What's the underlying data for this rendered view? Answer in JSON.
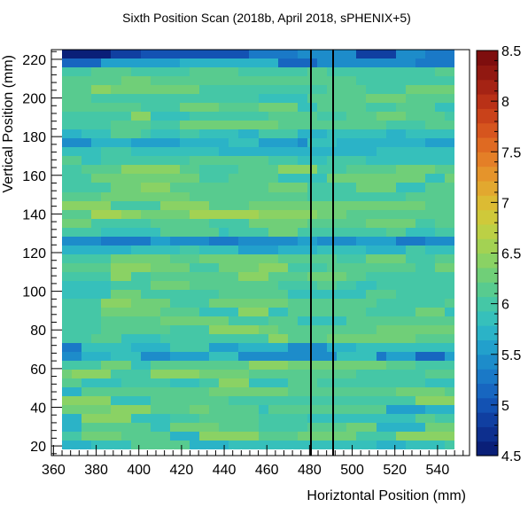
{
  "chart_data": {
    "type": "heatmap",
    "title": "Sixth Position Scan (2018b, April 2018, sPHENIX+5)",
    "xlabel": "Horiztontal Position (mm)",
    "ylabel": "Vertical Position (mm)",
    "xlim": [
      359,
      555
    ],
    "ylim": [
      15,
      225
    ],
    "x_ticks": [
      360,
      380,
      400,
      420,
      440,
      460,
      480,
      500,
      520,
      540
    ],
    "y_ticks": [
      20,
      40,
      60,
      80,
      100,
      120,
      140,
      160,
      180,
      200,
      220
    ],
    "colorbar": {
      "min": 4.5,
      "max": 8.5,
      "ticks": [
        4.5,
        5,
        5.5,
        6,
        6.5,
        7,
        7.5,
        8,
        8.5
      ],
      "palette": [
        "#0a1f78",
        "#0d2f8e",
        "#103fa1",
        "#1352b3",
        "#1766c0",
        "#1a79c7",
        "#1d8cca",
        "#22a0cc",
        "#2bb3c7",
        "#36c0bb",
        "#45c7a6",
        "#58cb8f",
        "#70cf78",
        "#8ad264",
        "#a3d253",
        "#bcd045",
        "#cfc93a",
        "#dcbb33",
        "#e2a82f",
        "#e5942b",
        "#e47f27",
        "#df6a22",
        "#d6551e",
        "#c9421a",
        "#b93117",
        "#a52314",
        "#911811",
        "#7e0e0e"
      ]
    },
    "x_bins": {
      "start": 364,
      "width": 4.6,
      "count": 40
    },
    "y_bins": {
      "start": 18,
      "width": 4.6,
      "count": 45
    },
    "z_values": [
      "I3J4L6I4J3J4J8I3J4K5G3J3I3K3H4J6L2J3K4K4M3H3J5I4K5J4K2I4I5M3F2H6K3J3I4J3F9J4",
      "K2M4L5I3N6L4M6K4N6M5K5I3J5K3J5L1L7M7K5K4J2J3J6L2L8L6K5K3L8K2M7M2J6J2M6K7K9I3",
      "I2L7J2M5L4K5L4M3I5M8M3K4K2L2L5K3L4K2L4K4I2L4L3L4K5L2L4L3L4L3M5K5L5K5L5L5L2K1",
      "I2N5J4K3L4L2K5J8J3L2K6K4L3I4K3J2L3H3J3L4K1H4M8N5M5M7M5M4J6K6K7L2L6L2L6N6N4J5",
      "M5N4L4M2L5J1L5L3L4H4I5J3J3K3K4L3K4L5I2L3L5J6M2M2K4J5K5M6M4L3K6K5J4J7M4M4O5M4",
      "N5J4L8K5K3K4K5K2N6J3K4K3I4J3K1H3J1J4K2I4J2J3J2L7K4M4K3K6L5N6M5K4M2L5M5N2K5K6",
      "I2L5L8M2M3M3L3L8M5L3J5K5M3M7N5M5N5K3L3L2K3L4M4L2M5L7K3L6K4L5L4O2L4N6M4L4N6K5",
      "L2J4K3K2J3K2N3J4L3K6K5J3J5I4L4J5L2J3L4K3L4L6J3I4K4M4L6N5M1L3M4L7N3M5L4M2L8K3",
      "M1N4K4N5M5L5L4L2K3K4L5M3L4L3L2L3M3L5L4M3L5N5L4M3M3K5M7M4J2N4L5K1L4L3K3L4L2K3",
      "K4M3J2L6L4N4M5M2M3L3K4K4K2M3K1J3J3J4K4L2K7L7L3K4L3J4K3L1M6K4K3J3J1J2L5K3K3K3",
      "G2I3J3G3H4J3G6G4J4F1H3E3H2G4E3G2F5G3F4H2G5H6F3F5F3H4G4G4G3E4I3F3G3H4G4F5E5D4",
      "F2J5I4K4H3I5G4I3J6J4J5I5I2G4H5G3H2H3I3K3G4I3J5I3I3K4G5I2I3G5I2H6H6K5J3I2J3F5",
      "K3L3J4K4K4K3N2L4M5M3M1L4M2K4L5L5L4M3K3M4M6K5M5L5L5L6L6L6K4K5M6N6M3J4L6J2M6K4",
      "K4L4L3K4N5M2L6L4M5M4L4L5K4L4N2M3L6L4L5M6K5K6L4L6K6M3L5K3L4J3L7L4L4L4L3L6L3J4",
      "K4L6M2M4M1K4L3J5L4L3L5L4K3L5M7M5K3M6L4L5L3L5L5M4L2M5M6L4M3K3L4M4L7N3O3M4J3K3",
      "K4M6L4J4N3J2L4L4K5M3J2J5M6M6L6K2M6L7L5L5L4M6L8J2L7L6M6M6M5M4N4M5M3L5M3M3J3L2",
      "K4N3M4K4M4M4L5L4K7L7K2K3L3K5L5M3L5M3K4L2M5M3K4L4M4N5L6L6N7K5N6K3L6M4K2K3H3I3",
      "J5M3K4K4L3L4J2J6L3K5K5L4I3K4L1K3M3M2L5L3L4L5K3J4L2K4L5K4J5L2J4K5K5J5L5J6J2I3",
      "J5K4M4L5L4K4L2K2J2K2K2K4K5J4K3L4K3L4K3M5N3K5K5J5J3K4J5J3K3J5L5K1J4J4K4L4I4H6",
      "K5N2K2L5L4N3L4M4L2K6K3L6M6L5L3M2L3K4L5L5L6L6L3K7L3L4L4L3M5K3K7K4L5N6M7N3I2G5",
      "L5N4M4K3M4N3K4L5L4K2M3N3L5M5M4L4M4L3L1M5N4M5M7M4K4L4M4M1L2K7N5M4K4M5K4L5I5F3",
      "K5M4M2L3M3M5L4L2K3M4K3L5L2L3L3K5L5L3K4K4L4M2L4L3J3K4K2K3L4L6L6M3K3J3K4M4K1I3",
      "I3I2I2J5K2J4H4I4J2J3I4K2J4K3J2K4K4I6J6J3J4J2K5H5J2J4I4H3J4I4I4J3K2I3I4J3J3I3",
      "G4F2F3H2G4F3G4G2H2G4H4F3G5G6G1G3G3H2H4G2H2F3G4G2F2G5H4G3E4I4F4G5H4G3G4F3J2J3",
      "K4J3J3L6J1K4M3K3K2K4L2J3K4L3K4L1K4K5L5K2L5J4J4K5I5I4K5I4K4K2K3L6K4K3L5K4L6J3",
      "M3K6L5L1K4M3M3L2L4M5K2L4L4J3L4J4K5M3L4K3M5M4M5L2L5K7L3J4M5K7K5L6N4M5L4M4J3K5",
      "L3O3N2M5O7N6M3L4L3L3L4L4L4L3L4M5L2L5K5M6M3L4M7M4L4L5K2K3K4N3M4L5K4M4L4K7G3F4",
      "N5K5N1N4L4M5M4M4M5L3K4K3M4L5L5L4L4J4L2M3M3M5M5L5J5K5J3L5K6K4L6K5L4M3M5K4J3B3",
      "L4M3M2M4L3L4L5K4K6L5M5K4M3L4L3M3L4L4N3M5L4L4L4K5L5L4L5N4L5M5L4K1K5K5K4K3H2D3",
      "K5M3N3L3L4L3M4K5M4J3L2L3K3K2L3J5M6M3L5L1J4L4L3K5L2J3K4L5L4K2M3K3K4L3N5M3J5G4",
      "K3M4M4M3K3L3L2J5M6M4J2M3K3L4L4K3K2L3M6M4L2M5L5J4L3L5L4M5L6K4L4L4M4L3M5L4H5G3",
      "K2L4N6L2K4L4N4K3L5M4L2J5L4L4L5K3K4L5L1K5L2M4L4L5M4N6L5K2M7L7N5L5K3M5M4K4H2H4",
      "L2J2K2K2K5L3L1L4K3J3K4J4J5J5K4K3K2K3J2K5M3L4I3J3K3K3J3J4J5J5J3J4K4J3J1J5I5J4",
      "J4K3J3J2J4I6I5I5J3J5K3K3J2K6J3I3J3J4J5K3H3J5I3K2J3J4J2J4I4K4J2H4H4I4J3K4I3F4",
      "G3I4H5I3I2J3H4G1J3I2I2I5H3G2H3I3G5H2I4J3G3I4J3G3H5I3H2H5H4H4J5I4G4I3H4G3I3F4",
      "I2J3L3K1J3K2J4I2K4I3J3J3I2J4J2J4K2I3H6K5J4J3J3I3J3L3I2I5J4I4J5J2J5K4K4K4J5K4",
      "K5L4K3M5M5L5L2L4K4L4K5K2K4L4M4K3L6L3L4M5L4L4M3L3M4L4N7L2L5M3M6K5L5K3K4N2L3L4",
      "K7N2J4K2K3K3L5K3L3M3L4K5K3M5K3N4M4L4M3L3L4M3L4J4K5L6M5L3L5M5L3L3L5K3L4M3K3M5",
      "L4L4K4M4L4M4J2L2L3K3L4J4J6K6L4L4M5N5K2L2K3L3L5L3L3K5L2L3L4L4J4K5L4L5L5M3N2L2",
      "L3K5K5K3K4J5L4L2M4L4L5L4M4K5L5L3K4K6K4L4J3L5J3L2L4K4K4M6K3M5L7K6N5M4L4N4M4K3",
      "L3N2M3M3M3K3K3K4K3L4K4M5M4L2L2K3L3L4L5L2K3K3K5L4K5L4K4K4L5M3K3M4J5K5K5K3K3L5",
      "L3L3M3L2L4L6L5L4K5K3K3K4L4L3M2N3L5L5L5J4K4L4L4L4K4K4L4M3K3J3M4M3K3L4K3L4K2M2",
      "K3L4K3K3L3L2K3K4L2K4K3K4L2J4I5J3L3K4K3J3J4K5I3J3J3K3J6L2K5K3M3K3K2J5I3K2I3I3",
      "E4H3H5I5I5E4G2G5G3F4G3F4F4G3E3G4G3G3E4G5E4G4F5F3F4E6H3F1F4F6H4H3H2F3F3F3H3I3",
      "A5C3D4D5D2F5G6C4G3F5G4H4H2F5G3I4G6E5C4C3G3G6H3G5F4G3F2F5G4G4F4C3F4G4D5F3A5A5"
    ]
  }
}
